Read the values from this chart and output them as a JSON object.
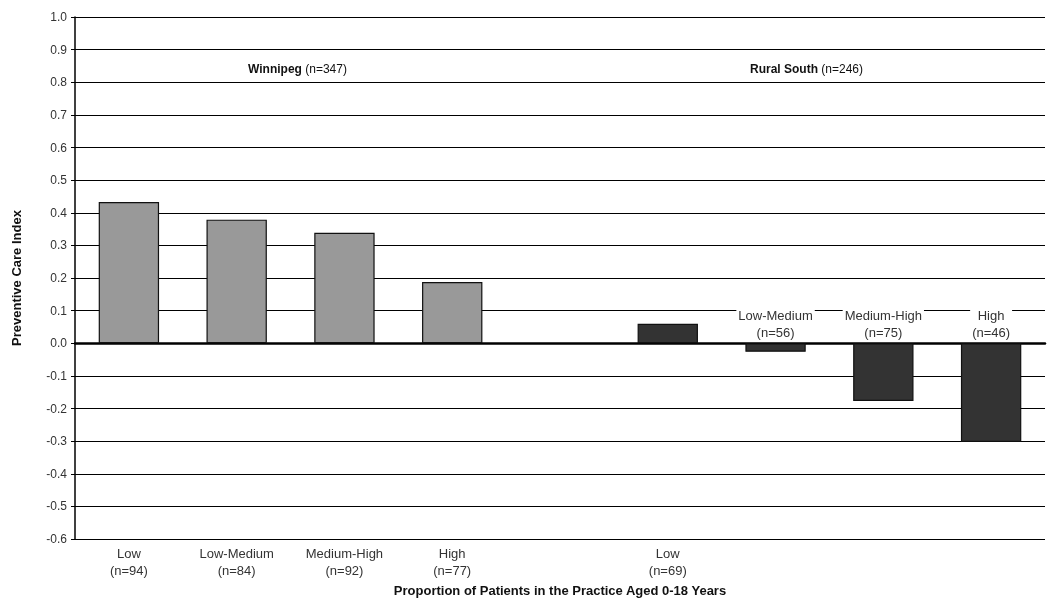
{
  "chart_data": {
    "type": "bar",
    "xlabel": "Proportion of Patients in the Practice Aged 0-18 Years",
    "ylabel": "Preventive Care Index",
    "categories": [
      "Low\n(n=94)",
      "Low-Medium\n(n=84)",
      "Medium-High\n(n=92)",
      "High\n(n=77)",
      null,
      "Low\n(n=69)",
      "Low-Medium\n(n=56)",
      "Medium-High\n(n=75)",
      "High\n(n=46)"
    ],
    "values": [
      0.433,
      0.379,
      0.339,
      0.188,
      null,
      0.06,
      -0.026,
      -0.177,
      -0.302
    ],
    "colors": [
      "#999999",
      "#999999",
      "#999999",
      "#999999",
      "#999999",
      "#333333",
      "#333333",
      "#333333",
      "#333333"
    ],
    "ylim": [
      -0.6,
      1.0
    ],
    "yticks": [
      -0.6,
      -0.5,
      -0.4,
      -0.3,
      -0.2,
      -0.1,
      {
        "value": 0,
        "label": "0.0"
      },
      0.1,
      0.2,
      0.3,
      0.4,
      0.5,
      0.6,
      0.7,
      0.8,
      0.9,
      {
        "value": 1,
        "label": "1.0"
      }
    ],
    "grid": "y",
    "annotations": [
      "Winnipeg (n=347)",
      "Rural South (n=246)"
    ]
  }
}
